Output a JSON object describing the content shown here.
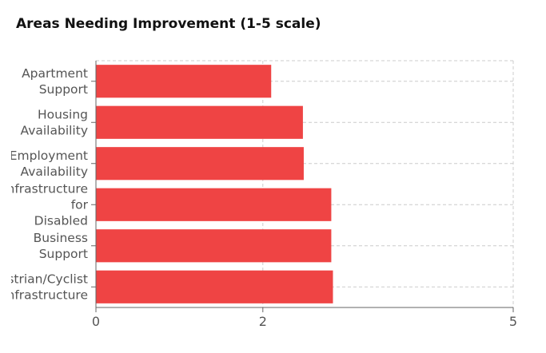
{
  "chart_data": {
    "type": "bar",
    "orientation": "horizontal",
    "title": "Areas Needing Improvement (1-5 scale)",
    "xlabel": "",
    "ylabel": "",
    "xlim": [
      0,
      5
    ],
    "x_ticks": [
      "0",
      "2",
      "5"
    ],
    "grid": true,
    "bar_color": "#ef4444",
    "categories": [
      "Apartment Support",
      "Housing Availability",
      "Employment Availability",
      "Infrastructure for Disabled",
      "Business Support",
      "Pedestrian/Cyclist Infrastructure"
    ],
    "category_label_lines": [
      [
        "Apartment",
        "Support"
      ],
      [
        "Housing",
        "Availability"
      ],
      [
        "Employment",
        "Availability"
      ],
      [
        "Infrastructure",
        "for",
        "Disabled"
      ],
      [
        "Business",
        "Support"
      ],
      [
        "Pedestrian/Cyclist",
        "Infrastructure"
      ]
    ],
    "values": [
      2.1,
      2.48,
      2.49,
      2.82,
      2.82,
      2.84
    ]
  }
}
